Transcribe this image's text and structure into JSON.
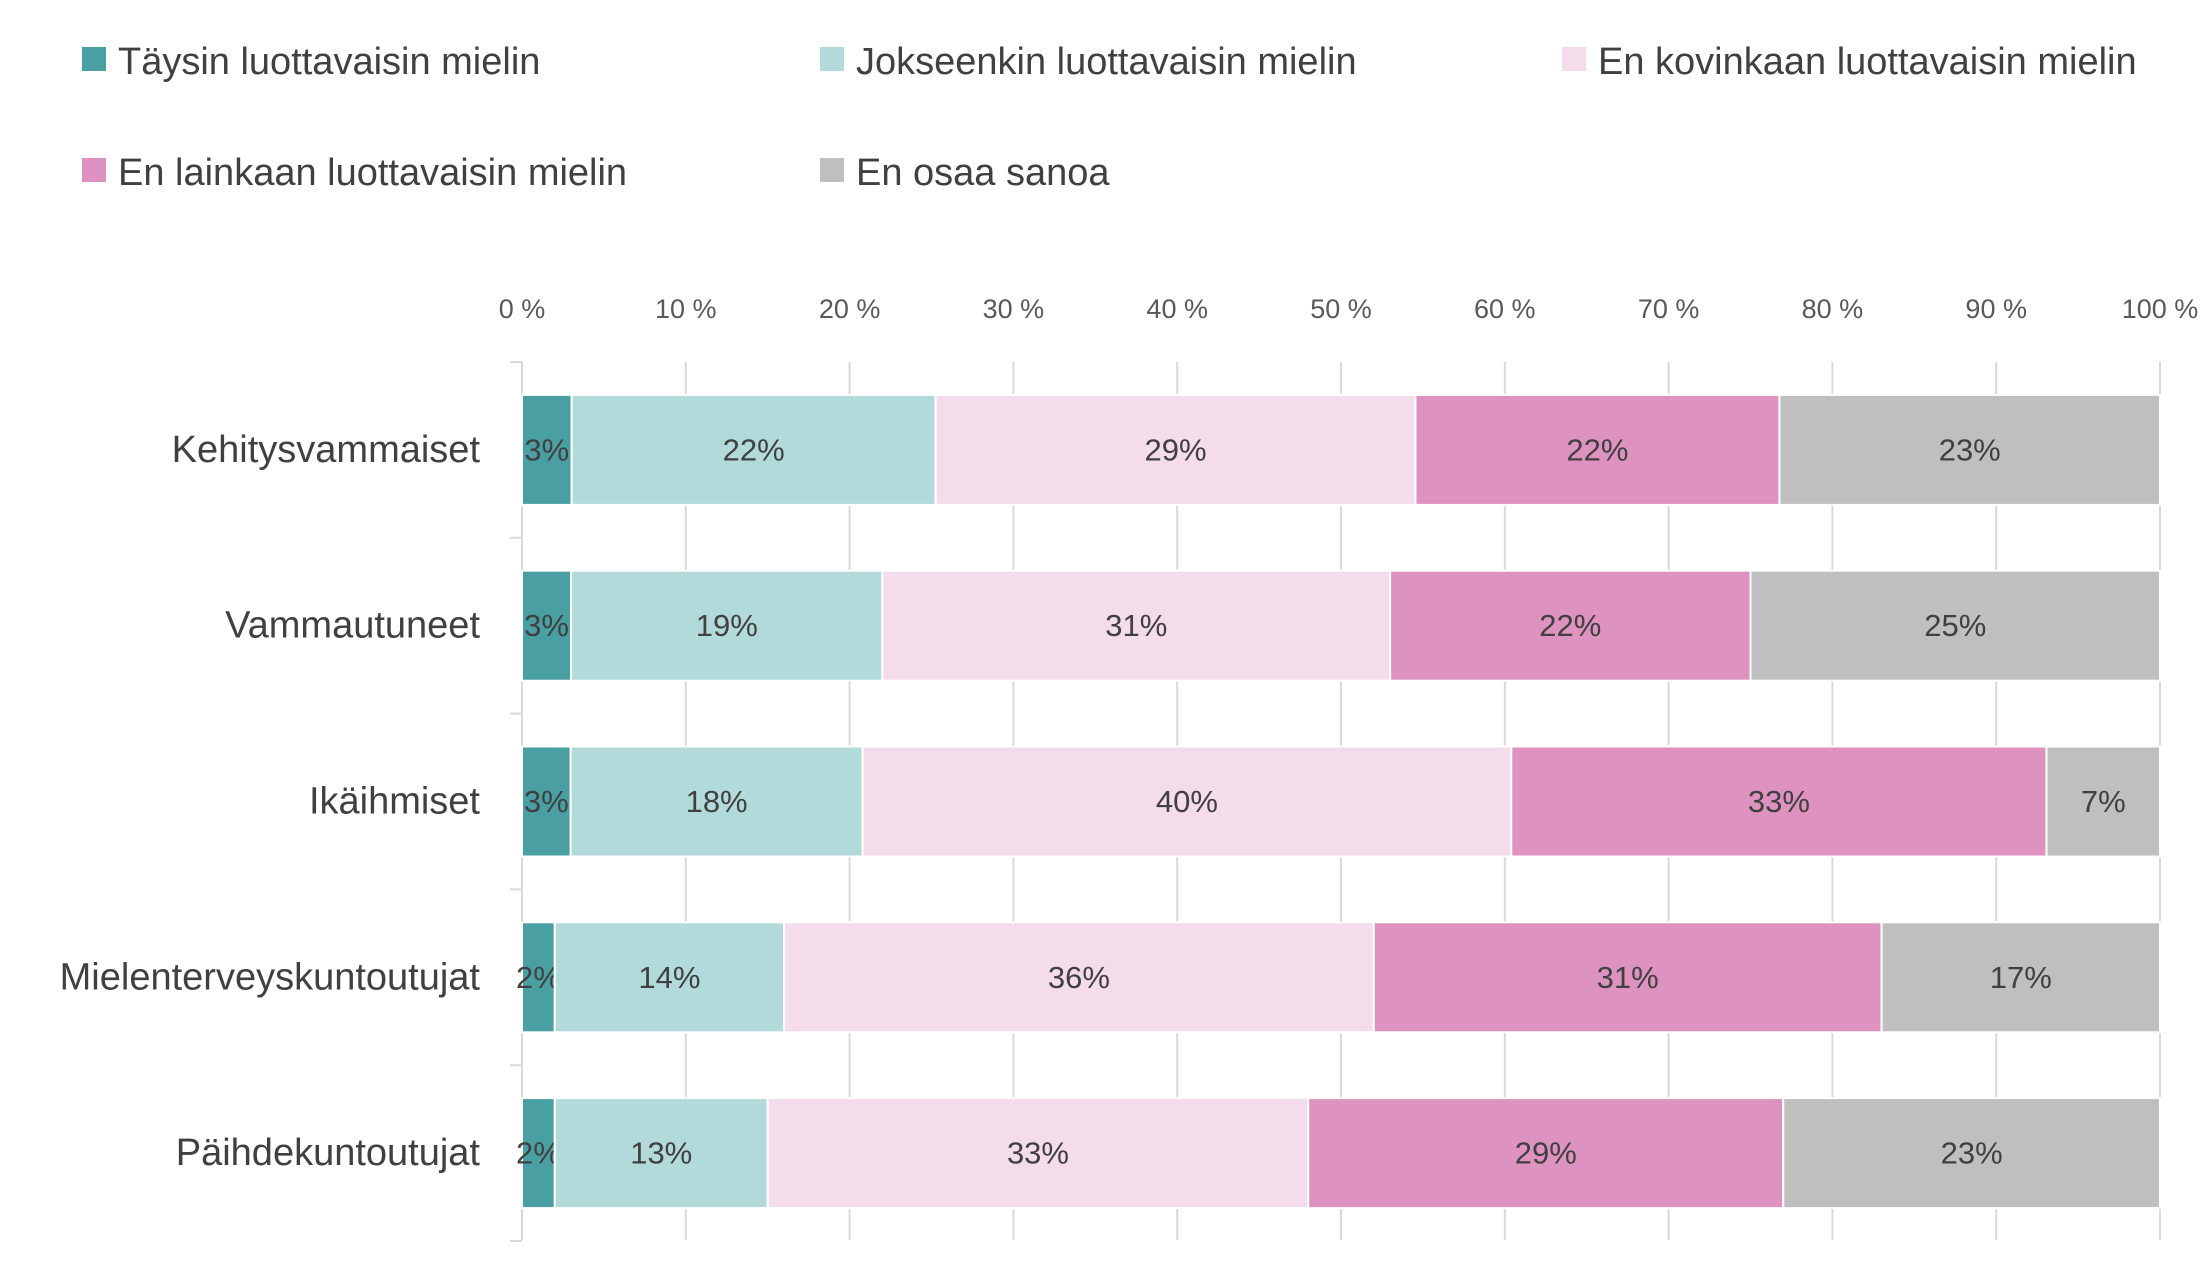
{
  "chart_data": {
    "type": "bar",
    "orientation": "horizontal",
    "stacked": "percent",
    "categories": [
      "Kehitysvammaiset",
      "Vammautuneet",
      "Ikäihmiset",
      "Mielenterveyskuntoutujat",
      "Päihdekuntoutujat"
    ],
    "series": [
      {
        "name": "Täysin luottavaisin mielin",
        "color": "#4a9fa3",
        "values": [
          3,
          3,
          3,
          2,
          2
        ],
        "labels": [
          "3%",
          "3%",
          "3%",
          "2%",
          "2%"
        ]
      },
      {
        "name": "Jokseenkin luottavaisin mielin",
        "color": "#b3dadb",
        "values": [
          22,
          19,
          18,
          14,
          13
        ],
        "labels": [
          "22%",
          "19%",
          "18%",
          "14%",
          "13%"
        ]
      },
      {
        "name": "En kovinkaan luottavaisin mielin",
        "color": "#f4dcea",
        "values": [
          29,
          31,
          40,
          36,
          33
        ],
        "labels": [
          "29%",
          "31%",
          "40%",
          "36%",
          "33%"
        ]
      },
      {
        "name": "En lainkaan luottavaisin mielin",
        "color": "#de92c0",
        "values": [
          22,
          22,
          33,
          31,
          29
        ],
        "labels": [
          "22%",
          "22%",
          "33%",
          "31%",
          "29%"
        ]
      },
      {
        "name": "En osaa sanoa",
        "color": "#bfbfbf",
        "values": [
          23,
          25,
          7,
          17,
          23
        ],
        "labels": [
          "23%",
          "25%",
          "7%",
          "17%",
          "23%"
        ]
      }
    ],
    "xlim": [
      0,
      100
    ],
    "x_ticks": [
      "0 %",
      "10 %",
      "20 %",
      "30 %",
      "40 %",
      "50 %",
      "60 %",
      "70 %",
      "80 %",
      "90 %",
      "100 %"
    ],
    "x_axis_position": "top",
    "grid": true,
    "legend_position": "top"
  }
}
